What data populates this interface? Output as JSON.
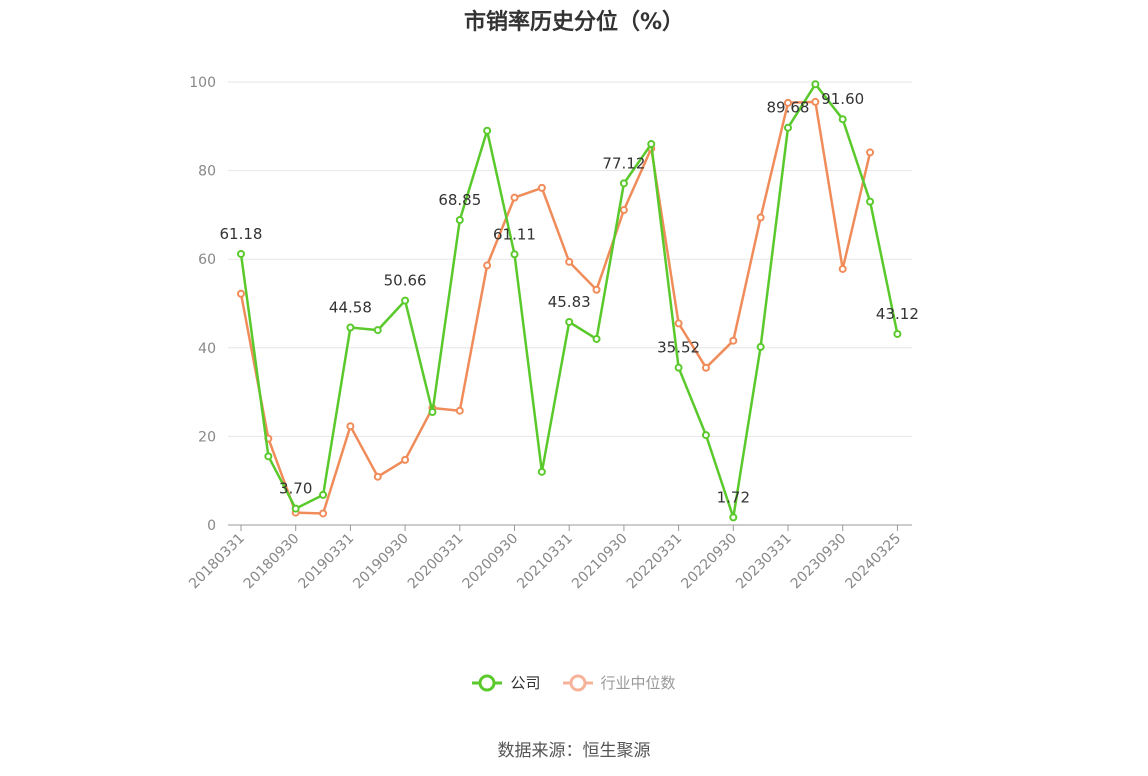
{
  "title": "市销率历史分位（%）",
  "source": "数据来源：恒生聚源",
  "legend": {
    "company": "公司",
    "industry": "行业中位数"
  },
  "colors": {
    "company": "#5ac92c",
    "industry": "#f08c5a",
    "industry_legend": "#f6b39a",
    "grid": "#e6e6e6",
    "axis": "#999999"
  },
  "chart_data": {
    "type": "line",
    "title": "市销率历史分位（%）",
    "ylim": [
      0,
      100
    ],
    "yticks": [
      0,
      20,
      40,
      60,
      80,
      100
    ],
    "x": [
      "20180331",
      "20180630",
      "20180930",
      "20181231",
      "20190331",
      "20190630",
      "20190930",
      "20191231",
      "20200331",
      "20200630",
      "20200930",
      "20201231",
      "20210331",
      "20210630",
      "20210930",
      "20211231",
      "20220331",
      "20220630",
      "20220930",
      "20221231",
      "20230331",
      "20230630",
      "20230930",
      "20231231",
      "20240325"
    ],
    "xtick_labels": [
      "20180331",
      "20180930",
      "20190331",
      "20190930",
      "20200331",
      "20200930",
      "20210331",
      "20210930",
      "20220331",
      "20220930",
      "20230331",
      "20230930",
      "20240325"
    ],
    "series": [
      {
        "name": "公司",
        "values": [
          61.18,
          15.5,
          3.7,
          6.8,
          44.58,
          44.0,
          50.66,
          25.5,
          68.85,
          89.0,
          61.11,
          12.0,
          45.83,
          42.0,
          77.12,
          86.0,
          35.52,
          20.3,
          1.72,
          40.2,
          89.68,
          99.5,
          91.6,
          73.0,
          43.12
        ],
        "labels": {
          "0": "61.18",
          "2": "3.70",
          "4": "44.58",
          "6": "50.66",
          "8": "68.85",
          "10": "61.11",
          "12": "45.83",
          "14": "77.12",
          "16": "35.52",
          "18": "1.72",
          "20": "89.68",
          "22": "91.60",
          "24": "43.12"
        }
      },
      {
        "name": "行业中位数",
        "values": [
          52.2,
          19.5,
          2.8,
          2.6,
          22.3,
          10.9,
          14.7,
          26.4,
          25.8,
          58.6,
          73.9,
          76.1,
          59.4,
          53.1,
          71.1,
          85.0,
          45.5,
          35.5,
          41.6,
          69.4,
          95.3,
          95.5,
          57.8,
          84.1,
          null
        ]
      }
    ]
  }
}
